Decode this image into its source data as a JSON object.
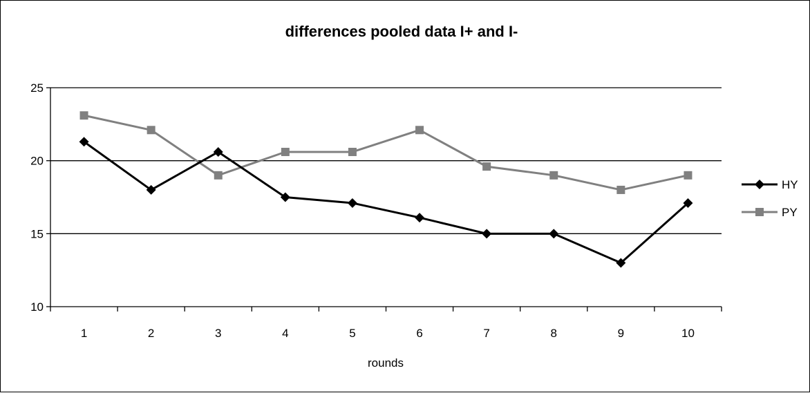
{
  "chart_data": {
    "type": "line",
    "title": "differences pooled data I+ and I-",
    "xlabel": "rounds",
    "ylabel": "",
    "categories": [
      "1",
      "2",
      "3",
      "4",
      "5",
      "6",
      "7",
      "8",
      "9",
      "10"
    ],
    "yticks": [
      "10",
      "15",
      "20",
      "25"
    ],
    "ylim": [
      10,
      25
    ],
    "grid": "horizontal",
    "legend_position": "right",
    "series": [
      {
        "name": "HY",
        "values": [
          21.3,
          18.0,
          20.6,
          17.5,
          17.1,
          16.1,
          15.0,
          15.0,
          13.0,
          17.1
        ],
        "color": "#000000",
        "marker": "diamond"
      },
      {
        "name": "PY",
        "values": [
          23.1,
          22.1,
          19.0,
          20.6,
          20.6,
          22.1,
          19.6,
          19.0,
          18.0,
          19.0
        ],
        "color": "#808080",
        "marker": "square"
      }
    ]
  }
}
